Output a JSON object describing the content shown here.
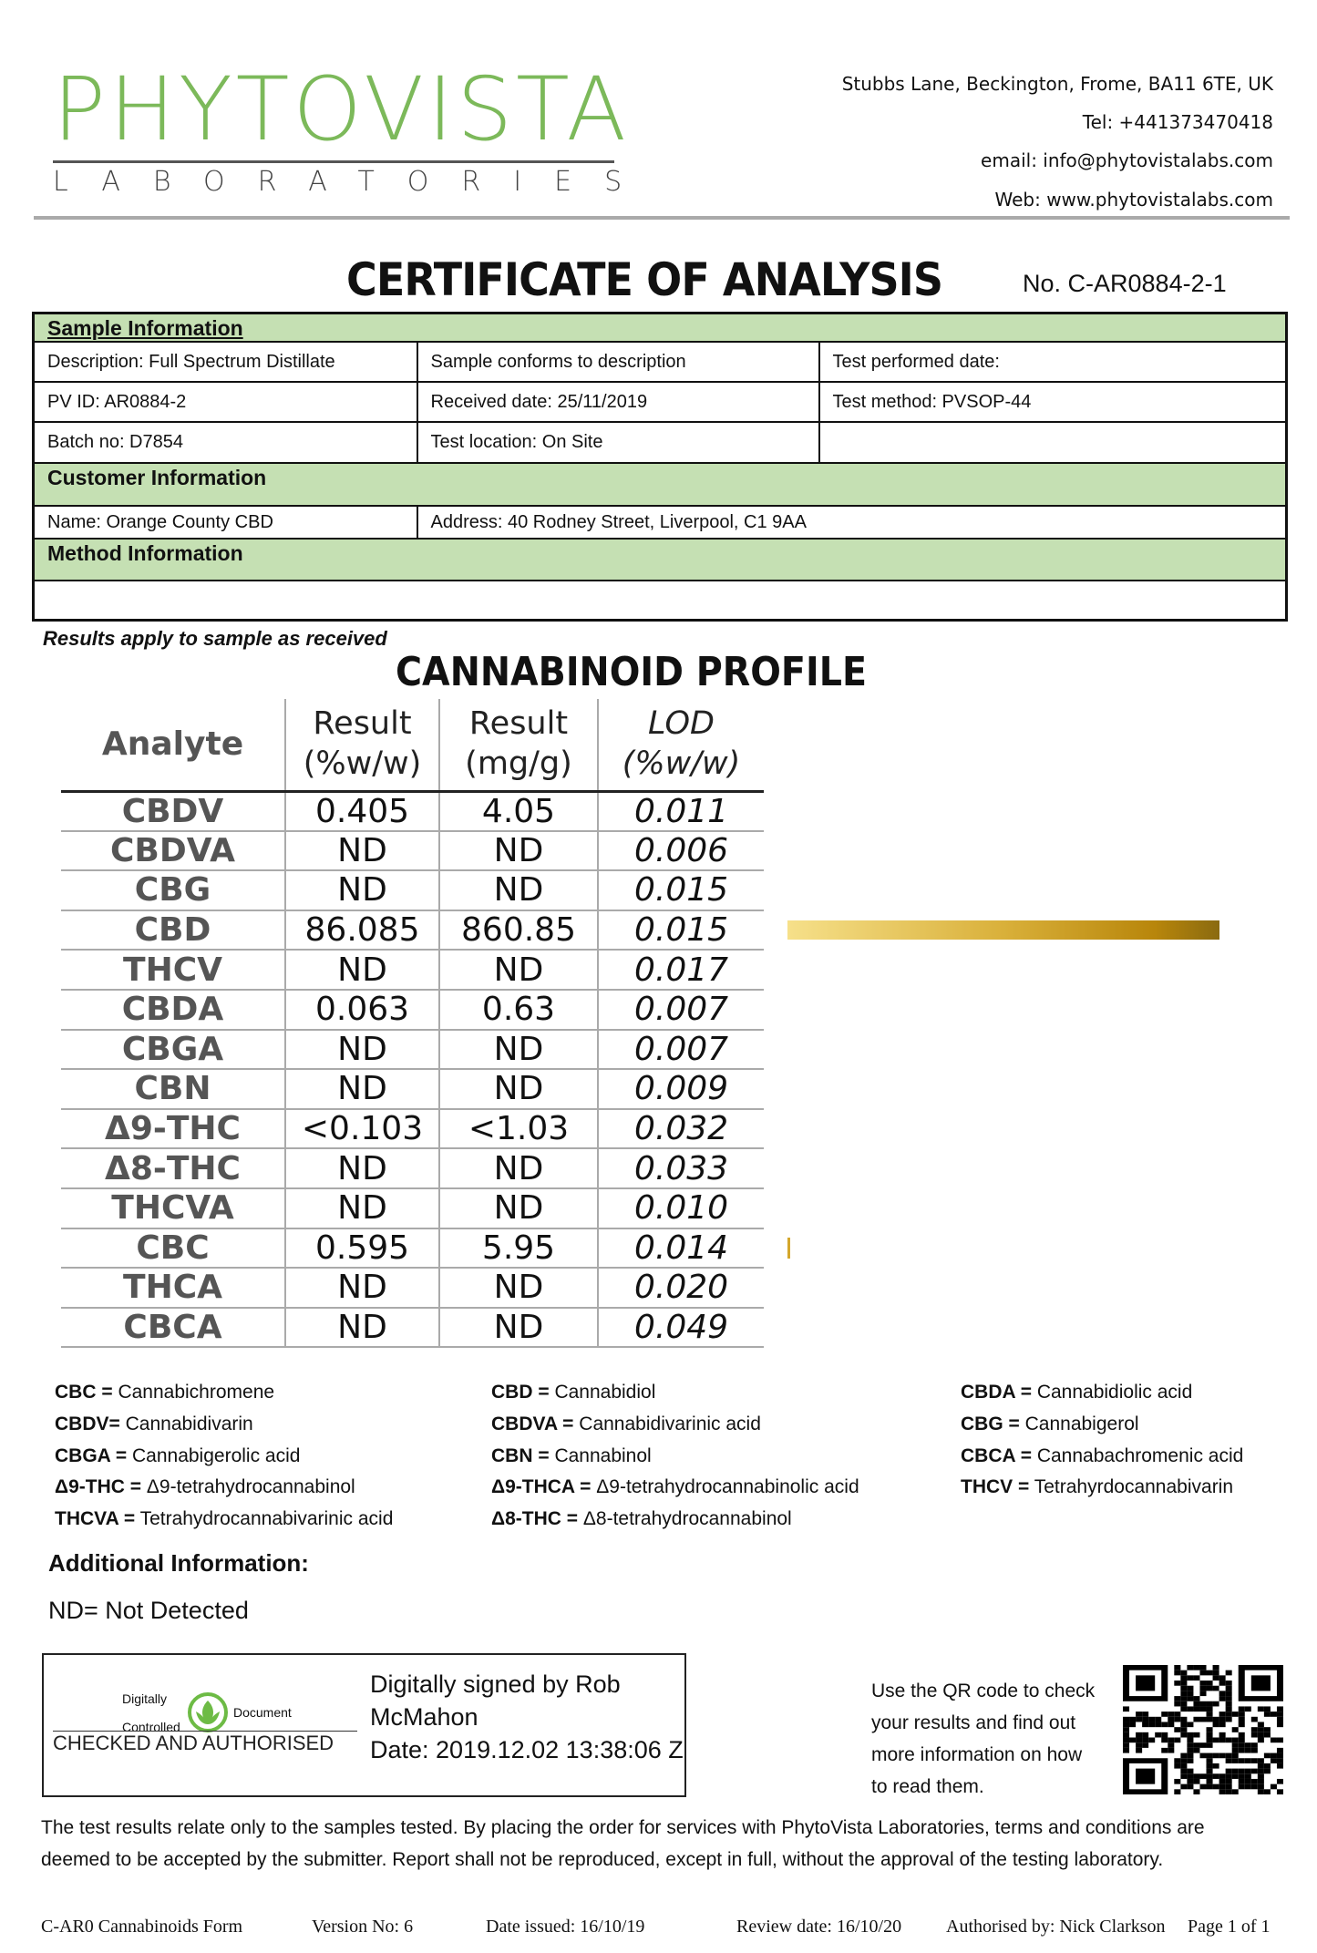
{
  "header": {
    "logo_text": "PHYTOVISTA",
    "logo_subtext": "LABORATORIES",
    "brand_color": "#7cb95a",
    "address": "Stubbs Lane, Beckington, Frome, BA11 6TE, UK",
    "tel": "Tel: +441373470418",
    "email": "email: info@phytovistalabs.com",
    "web": "Web: www.phytovistalabs.com"
  },
  "title": "CERTIFICATE OF ANALYSIS",
  "cert_no": "No. C-AR0884-2-1",
  "sample_info": {
    "heading": "Sample Information",
    "description": "Description: Full Spectrum Distillate",
    "conforms": "Sample conforms to description",
    "test_date": "Test performed date:",
    "pv_id": "PV ID: AR0884-2",
    "received": "Received date: 25/11/2019",
    "method": "Test method: PVSOP-44",
    "batch": "Batch no: D7854",
    "location": "Test location: On Site"
  },
  "customer_info": {
    "heading": "Customer Information",
    "name": "Name: Orange County CBD",
    "address": "Address: 40 Rodney Street, Liverpool, C1 9AA"
  },
  "method_info": {
    "heading": "Method Information"
  },
  "results_note": "Results apply to sample as received",
  "profile": {
    "title": "CANNABINOID PROFILE",
    "headers": [
      "Analyte",
      "Result (%w/w)",
      "Result (mg/g)",
      "LOD (%w/w)"
    ],
    "rows": [
      [
        "CBDV",
        "0.405",
        "4.05",
        "0.011"
      ],
      [
        "CBDVA",
        "ND",
        "ND",
        "0.006"
      ],
      [
        "CBG",
        "ND",
        "ND",
        "0.015"
      ],
      [
        "CBD",
        "86.085",
        "860.85",
        "0.015"
      ],
      [
        "THCV",
        "ND",
        "ND",
        "0.017"
      ],
      [
        "CBDA",
        "0.063",
        "0.63",
        "0.007"
      ],
      [
        "CBGA",
        "ND",
        "ND",
        "0.007"
      ],
      [
        "CBN",
        "ND",
        "ND",
        "0.009"
      ],
      [
        "Δ9-THC",
        "<0.103",
        "<1.03",
        "0.032"
      ],
      [
        "Δ8-THC",
        "ND",
        "ND",
        "0.033"
      ],
      [
        "THCVA",
        "ND",
        "ND",
        "0.010"
      ],
      [
        "CBC",
        "0.595",
        "5.95",
        "0.014"
      ],
      [
        "THCA",
        "ND",
        "ND",
        "0.020"
      ],
      [
        "CBCA",
        "ND",
        "ND",
        "0.049"
      ]
    ],
    "bar_color": "#d9b03a"
  },
  "legend": [
    [
      [
        "CBC =",
        "Cannabichromene"
      ],
      [
        "CBDV=",
        "Cannabidivarin"
      ],
      [
        "CBGA =",
        "Cannabigerolic acid"
      ],
      [
        "Δ9-THC =",
        "Δ9-tetrahydrocannabinol"
      ],
      [
        "THCVA =",
        "Tetrahydrocannabivarinic acid"
      ]
    ],
    [
      [
        "CBD =",
        "Cannabidiol"
      ],
      [
        "CBDVA =",
        "Cannabidivarinic acid"
      ],
      [
        "CBN =",
        "Cannabinol"
      ],
      [
        "Δ9-THCA =",
        "Δ9-tetrahydrocannabinolic acid"
      ],
      [
        "Δ8-THC =",
        "Δ8-tetrahydrocannabinol"
      ]
    ],
    [
      [
        "CBDA =",
        "Cannabidiolic acid"
      ],
      [
        "CBG =",
        "Cannabigerol"
      ],
      [
        "CBCA =",
        "Cannabachromenic acid"
      ],
      [
        "THCV =",
        "Tetrahyrdocannabivarin"
      ]
    ]
  ],
  "additional": {
    "heading": "Additional Information:",
    "nd": "ND= Not Detected"
  },
  "signature": {
    "stamp_left_top": "Digitally",
    "stamp_left_bottom": "Controlled",
    "stamp_right": "Document",
    "stamp_caption": "CHECKED AND AUTHORISED",
    "signed_line1": "Digitally signed by Rob",
    "signed_line2": "McMahon",
    "date": "Date: 2019.12.02 13:38:06 Z"
  },
  "qr": {
    "text": [
      "Use the QR code to check",
      "your results and find out",
      "more information on how",
      "to read them."
    ]
  },
  "disclaimer": [
    "The test results relate only to the samples tested.  By placing the order for services with PhytoVista Laboratories, terms and conditions are",
    "deemed to be accepted by the submitter. Report shall not be reproduced, except in full, without the approval of the testing laboratory."
  ],
  "footer": {
    "form": "C-AR0 Cannabinoids Form",
    "version": "Version No:   6",
    "issued": "Date issued: 16/10/19",
    "review": "Review  date: 16/10/20",
    "authorised": "Authorised by: Nick Clarkson",
    "page": "Page  1 of 1"
  }
}
